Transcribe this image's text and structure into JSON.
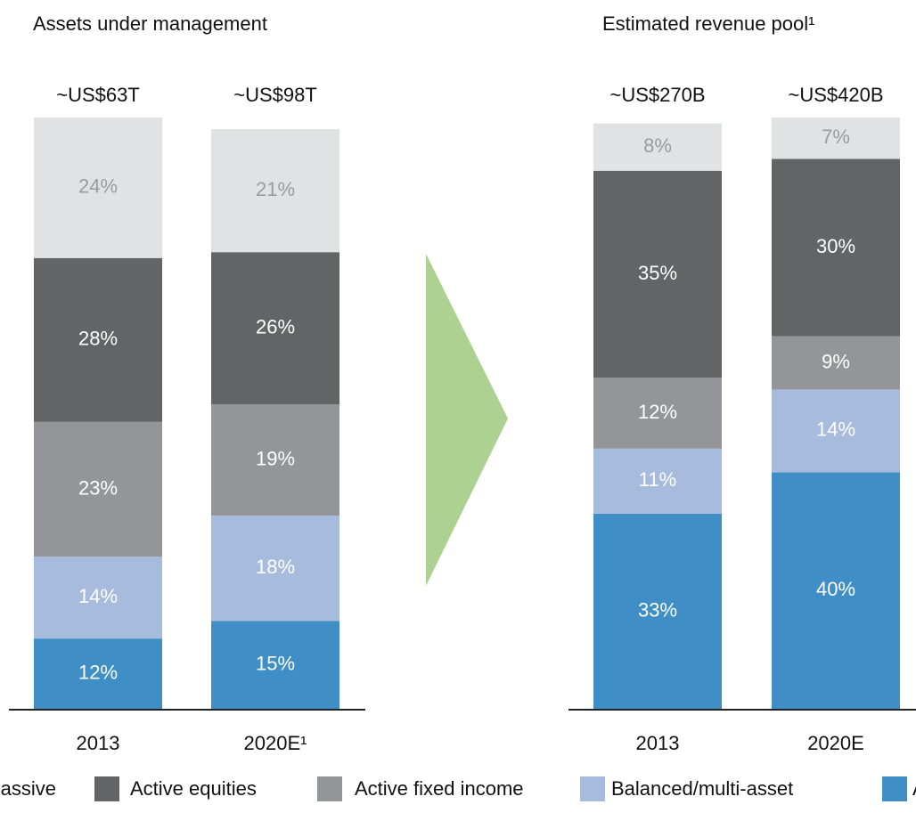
{
  "chart_data": [
    {
      "type": "bar",
      "stacked": true,
      "title": "Assets under management",
      "categories": [
        "2013",
        "2020E¹"
      ],
      "totals": [
        "~US$63T",
        "~US$98T"
      ],
      "ylim": [
        0,
        101
      ],
      "series": [
        {
          "name": "Alternatives",
          "color": "#3f8fc6",
          "values": [
            12,
            15
          ],
          "value_labels": [
            "12%",
            "15%"
          ]
        },
        {
          "name": "Balanced/multi-asset",
          "color": "#a7bbdc",
          "values": [
            14,
            18
          ],
          "value_labels": [
            "14%",
            "18%"
          ]
        },
        {
          "name": "Active fixed income",
          "color": "#939598",
          "values": [
            23,
            19
          ],
          "value_labels": [
            "23%",
            "19%"
          ]
        },
        {
          "name": "Active equities",
          "color": "#636466",
          "values": [
            28,
            26
          ],
          "value_labels": [
            "28%",
            "26%"
          ]
        },
        {
          "name": "Passive",
          "color": "#e1e2e3",
          "values": [
            24,
            21
          ],
          "value_labels": [
            "24%",
            "21%"
          ]
        }
      ]
    },
    {
      "type": "bar",
      "stacked": true,
      "title": "Estimated revenue pool¹",
      "categories": [
        "2013",
        "2020E"
      ],
      "totals": [
        "~US$270B",
        "~US$420B"
      ],
      "ylim": [
        0,
        100
      ],
      "series": [
        {
          "color": "#3f8fc6",
          "values": [
            33,
            40
          ],
          "value_labels": [
            "33%",
            "40%"
          ]
        },
        {
          "color": "#a7bbdc",
          "values": [
            11,
            14
          ],
          "value_labels": [
            "11%",
            "14%"
          ]
        },
        {
          "color": "#939598",
          "values": [
            12,
            9
          ],
          "value_labels": [
            "12%",
            "9%"
          ]
        },
        {
          "color": "#636466",
          "values": [
            35,
            30
          ],
          "value_labels": [
            "35%",
            "30%"
          ]
        },
        {
          "color": "#e1e2e3",
          "values": [
            8,
            7
          ],
          "value_labels": [
            "8%",
            "7%"
          ]
        }
      ]
    }
  ]
}
